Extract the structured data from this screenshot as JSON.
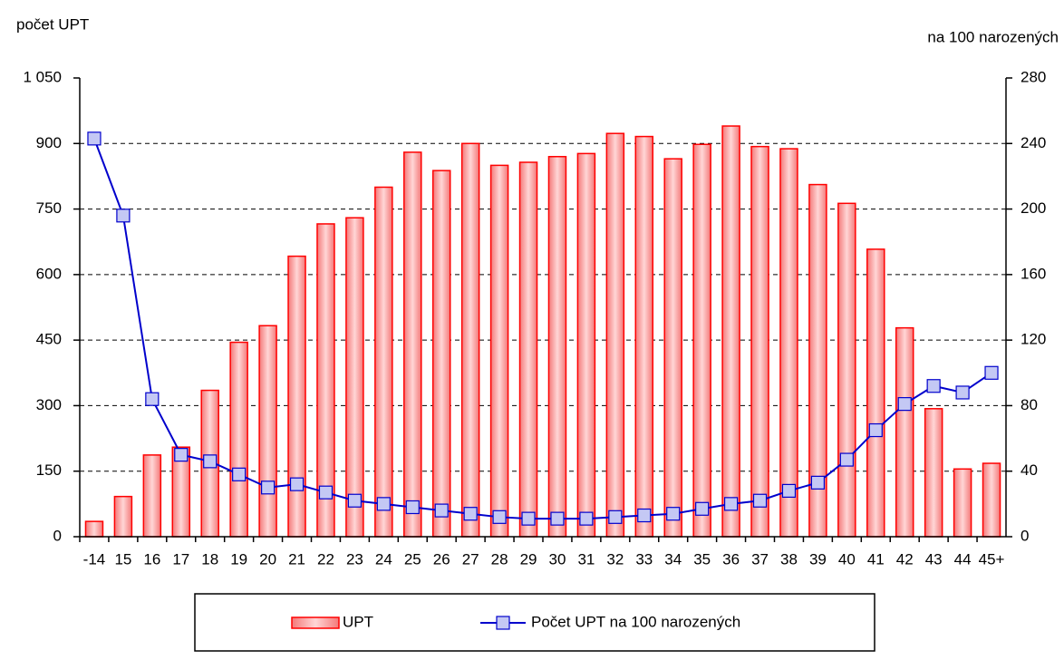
{
  "chart_data": {
    "type": "bar_line",
    "y_label": "počet UPT",
    "y2_label": "na  100 narozených",
    "categories": [
      "-14",
      "15",
      "16",
      "17",
      "18",
      "19",
      "20",
      "21",
      "22",
      "23",
      "24",
      "25",
      "26",
      "27",
      "28",
      "29",
      "30",
      "31",
      "32",
      "33",
      "34",
      "35",
      "36",
      "37",
      "38",
      "39",
      "40",
      "41",
      "42",
      "43",
      "44",
      "45+"
    ],
    "series": [
      {
        "name": "UPT",
        "type": "bar",
        "color": "#ff0000",
        "values": [
          35,
          92,
          187,
          205,
          335,
          445,
          483,
          642,
          716,
          730,
          800,
          880,
          838,
          900,
          850,
          857,
          870,
          877,
          923,
          916,
          865,
          898,
          940,
          893,
          888,
          806,
          763,
          658,
          478,
          293,
          155,
          168
        ]
      },
      {
        "name": "Počet UPT na 100 narozených",
        "type": "line",
        "axis": "y2",
        "color": "#0000cc",
        "values": [
          243,
          196,
          84,
          50,
          46,
          38,
          30,
          32,
          27,
          22,
          20,
          18,
          16,
          14,
          12,
          11,
          11,
          11,
          12,
          13,
          14,
          17,
          20,
          22,
          28,
          33,
          47,
          65,
          81,
          92,
          88,
          100
        ]
      }
    ],
    "ylim": [
      0,
      1050
    ],
    "yticks": [
      0,
      150,
      300,
      450,
      600,
      750,
      900,
      {
        "value": 1050,
        "label": "1 050"
      }
    ],
    "y2lim": [
      0,
      280
    ],
    "y2ticks": [
      0,
      40,
      80,
      120,
      160,
      200,
      240,
      280
    ],
    "grid": true
  }
}
